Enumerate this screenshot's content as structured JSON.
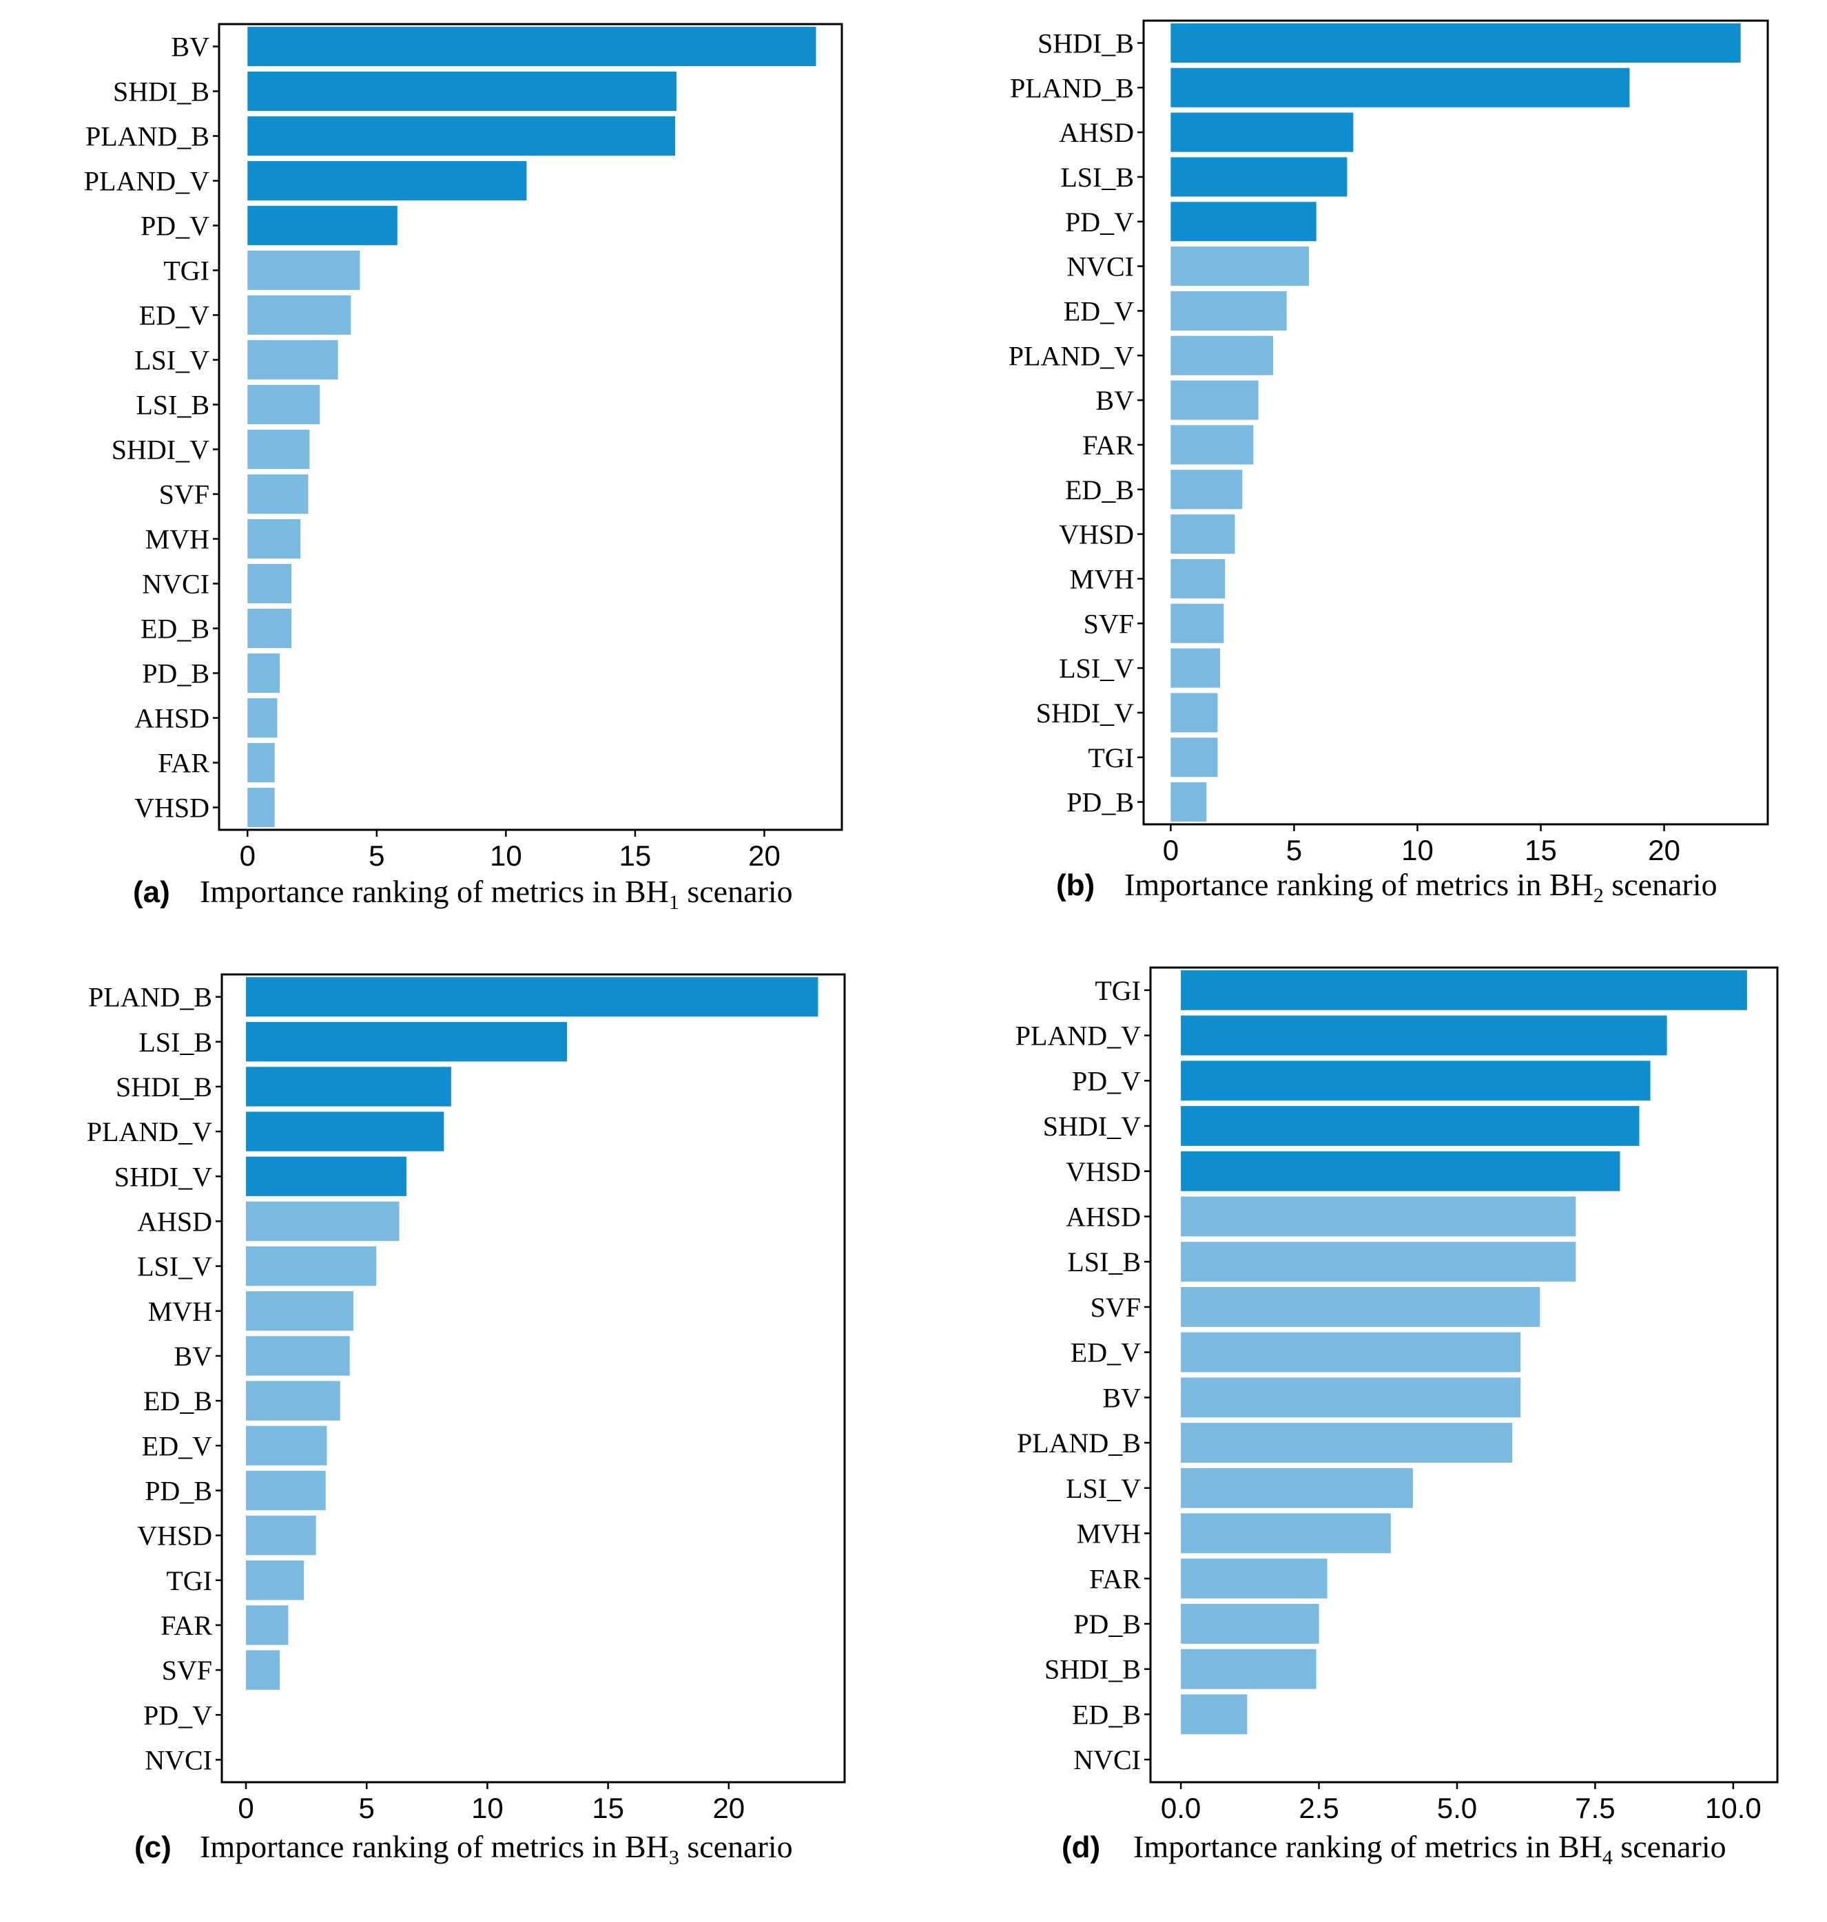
{
  "chart_data": [
    {
      "type": "bar",
      "orientation": "horizontal",
      "panel_label": "(a)",
      "caption_prefix": "Importance ranking of metrics in BH",
      "caption_subscript": "1",
      "caption_suffix": " scenario",
      "categories": [
        "BV",
        "SHDI_B",
        "PLAND_B",
        "PLAND_V",
        "PD_V",
        "TGI",
        "ED_V",
        "LSI_V",
        "LSI_B",
        "SHDI_V",
        "SVF",
        "MVH",
        "NVCI",
        "ED_B",
        "PD_B",
        "AHSD",
        "FAR",
        "VHSD"
      ],
      "values": [
        22.0,
        16.6,
        16.55,
        10.8,
        5.8,
        4.35,
        4.0,
        3.5,
        2.8,
        2.4,
        2.35,
        2.05,
        1.7,
        1.7,
        1.25,
        1.15,
        1.05,
        1.05
      ],
      "highlight_count": 5,
      "xlim": [
        -1.1,
        23.0
      ],
      "xticks": [
        0,
        5,
        10,
        15,
        20
      ],
      "xtick_labels": [
        "0",
        "5",
        "10",
        "15",
        "20"
      ],
      "colors": {
        "highlight": "#0f8ecf",
        "normal": "#7ab9e0"
      }
    },
    {
      "type": "bar",
      "orientation": "horizontal",
      "panel_label": "(b)",
      "caption_prefix": "Importance ranking of metrics in BH",
      "caption_subscript": "2",
      "caption_suffix": " scenario",
      "categories": [
        "SHDI_B",
        "PLAND_B",
        "AHSD",
        "LSI_B",
        "PD_V",
        "NVCI",
        "ED_V",
        "PLAND_V",
        "BV",
        "FAR",
        "ED_B",
        "VHSD",
        "MVH",
        "SVF",
        "LSI_V",
        "SHDI_V",
        "TGI",
        "PD_B"
      ],
      "values": [
        23.1,
        18.6,
        7.4,
        7.15,
        5.9,
        5.6,
        4.7,
        4.15,
        3.55,
        3.35,
        2.9,
        2.6,
        2.2,
        2.15,
        2.0,
        1.9,
        1.9,
        1.45
      ],
      "highlight_count": 5,
      "xlim": [
        -1.1,
        24.2
      ],
      "xticks": [
        0,
        5,
        10,
        15,
        20
      ],
      "xtick_labels": [
        "0",
        "5",
        "10",
        "15",
        "20"
      ],
      "colors": {
        "highlight": "#0f8ecf",
        "normal": "#7ab9e0"
      }
    },
    {
      "type": "bar",
      "orientation": "horizontal",
      "panel_label": "(c)",
      "caption_prefix": "Importance ranking of metrics in BH",
      "caption_subscript": "3",
      "caption_suffix": " scenario",
      "categories": [
        "PLAND_B",
        "LSI_B",
        "SHDI_B",
        "PLAND_V",
        "SHDI_V",
        "AHSD",
        "LSI_V",
        "MVH",
        "BV",
        "ED_B",
        "ED_V",
        "PD_B",
        "VHSD",
        "TGI",
        "FAR",
        "SVF",
        "PD_V",
        "NVCI"
      ],
      "values": [
        23.7,
        13.3,
        8.5,
        8.2,
        6.65,
        6.35,
        5.4,
        4.45,
        4.3,
        3.9,
        3.35,
        3.3,
        2.9,
        2.4,
        1.75,
        1.4,
        0,
        0
      ],
      "highlight_count": 5,
      "xlim": [
        -1.0,
        24.8
      ],
      "xticks": [
        0,
        5,
        10,
        15,
        20
      ],
      "xtick_labels": [
        "0",
        "5",
        "10",
        "15",
        "20"
      ],
      "colors": {
        "highlight": "#0f8ecf",
        "normal": "#7ab9e0"
      }
    },
    {
      "type": "bar",
      "orientation": "horizontal",
      "panel_label": "(d)",
      "caption_prefix": "Importance ranking of metrics in BH",
      "caption_subscript": "4",
      "caption_suffix": " scenario",
      "categories": [
        "TGI",
        "PLAND_V",
        "PD_V",
        "SHDI_V",
        "VHSD",
        "AHSD",
        "LSI_B",
        "SVF",
        "ED_V",
        "BV",
        "PLAND_B",
        "LSI_V",
        "MVH",
        "FAR",
        "PD_B",
        "SHDI_B",
        "ED_B",
        "NVCI"
      ],
      "values": [
        10.25,
        8.8,
        8.5,
        8.3,
        7.95,
        7.15,
        7.15,
        6.5,
        6.15,
        6.15,
        6.0,
        4.2,
        3.8,
        2.65,
        2.5,
        2.45,
        1.2,
        0
      ],
      "highlight_count": 5,
      "xlim": [
        -0.55,
        10.8
      ],
      "xticks": [
        0,
        2.5,
        5,
        7.5,
        10
      ],
      "xtick_labels": [
        "0.0",
        "2.5",
        "5.0",
        "7.5",
        "10.0"
      ],
      "colors": {
        "highlight": "#0f8ecf",
        "normal": "#7ab9e0"
      }
    }
  ]
}
